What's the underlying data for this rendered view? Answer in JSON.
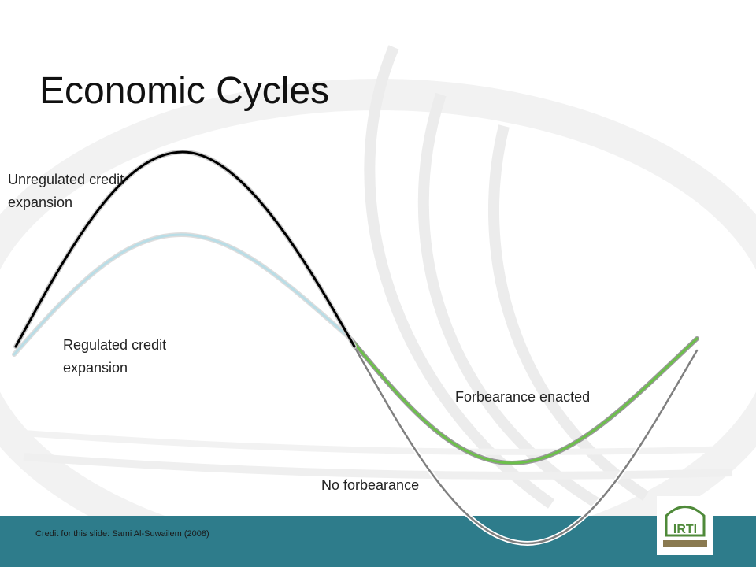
{
  "header": {
    "title": "Economic Cycles"
  },
  "labels": {
    "unregulated": [
      "Unregulated credit",
      "expansion"
    ],
    "regulated": [
      "Regulated credit",
      "expansion"
    ],
    "forbearance": "Forbearance enacted",
    "no_forbearance": "No forbearance"
  },
  "footer": {
    "credit": "Credit for this slide: Sami Al-Suwailem (2008)",
    "logo": "IRTI"
  }
}
